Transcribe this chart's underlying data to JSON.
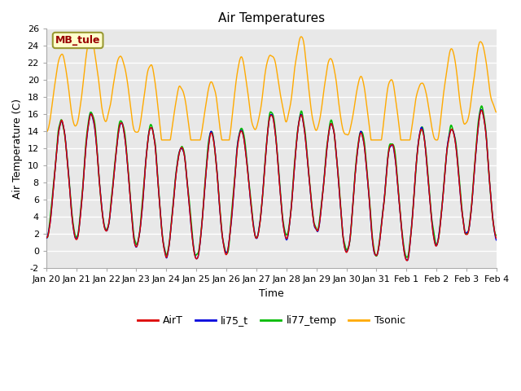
{
  "title": "Air Temperatures",
  "xlabel": "Time",
  "ylabel": "Air Temperature (C)",
  "ylim": [
    -2,
    26
  ],
  "yticks": [
    -2,
    0,
    2,
    4,
    6,
    8,
    10,
    12,
    14,
    16,
    18,
    20,
    22,
    24,
    26
  ],
  "xtick_labels": [
    "Jan 20",
    "Jan 21",
    "Jan 22",
    "Jan 23",
    "Jan 24",
    "Jan 25",
    "Jan 26",
    "Jan 27",
    "Jan 28",
    "Jan 29",
    "Jan 30",
    "Jan 31",
    "Feb 1",
    "Feb 2",
    "Feb 3",
    "Feb 4"
  ],
  "colors": {
    "AirT": "#dd0000",
    "li75_t": "#0000dd",
    "li77_temp": "#00bb00",
    "Tsonic": "#ffaa00"
  },
  "linewidths": {
    "AirT": 1.0,
    "li75_t": 1.0,
    "li77_temp": 1.2,
    "Tsonic": 1.0
  },
  "annotation_text": "MB_tule",
  "bg_color": "#e8e8e8",
  "fig_bg_color": "#ffffff",
  "title_fontsize": 11,
  "axis_label_fontsize": 9,
  "tick_fontsize": 8,
  "legend_fontsize": 9
}
